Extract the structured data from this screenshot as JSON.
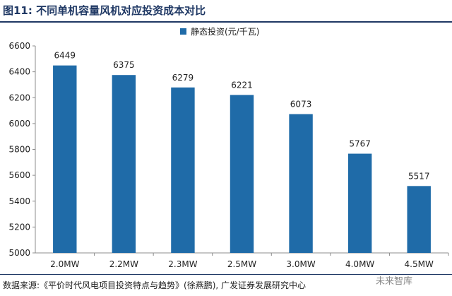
{
  "figure": {
    "title": "图11:  不同单机容量风机对应投资成本对比",
    "source": "数据来源:《平价时代风电项目投资特点与趋势》(徐燕鹏), 广发证券发展研究中心",
    "watermark": "未来智库"
  },
  "colors": {
    "bar": "#1f6ba8",
    "title": "#1f3864",
    "axis": "#8c8c8c"
  },
  "chart_data": {
    "type": "bar",
    "title": "",
    "xlabel": "",
    "ylabel": "",
    "categories": [
      "2.0MW",
      "2.2MW",
      "2.3MW",
      "2.5MW",
      "3.0MW",
      "4.0MW",
      "4.5MW"
    ],
    "series": [
      {
        "name": "静态投资(元/千瓦)",
        "values": [
          6449,
          6375,
          6279,
          6221,
          6073,
          5767,
          5517
        ]
      }
    ],
    "ylim": [
      5000,
      6600
    ],
    "yticks": [
      5000,
      5200,
      5400,
      5600,
      5800,
      6000,
      6200,
      6400,
      6600
    ],
    "grid": false,
    "legend_position": "top-center",
    "data_labels": true
  }
}
